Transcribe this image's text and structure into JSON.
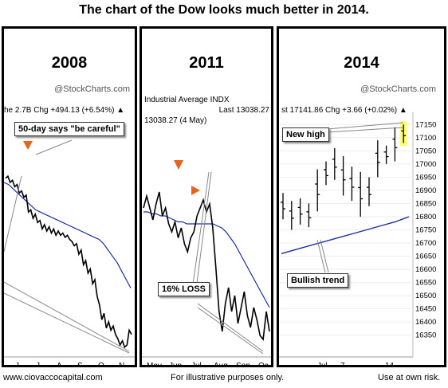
{
  "title": "The chart of the Dow looks much better in 2014.",
  "footer": {
    "left": "www.ciovaccocapital.com",
    "center": "For illustrative purposes only.",
    "right": "Use at own risk."
  },
  "chart_data": [
    {
      "type": "line",
      "year": "2008",
      "watermark": "@StockCharts.com",
      "header": "he 2.7B  Chg +494.13 (+6.54%) ▲",
      "x_ticks": [
        "J",
        "J",
        "A",
        "S",
        "O",
        "N"
      ],
      "annotation": "50-day says \"be careful\"",
      "series": [
        {
          "values": [
            0.82,
            0.83,
            0.8,
            0.81,
            0.78,
            0.79,
            0.75,
            0.76,
            0.73,
            0.74,
            0.66,
            0.67,
            0.63,
            0.65,
            0.61,
            0.62,
            0.58,
            0.6,
            0.57,
            0.59,
            0.56,
            0.58,
            0.55,
            0.57,
            0.55,
            0.56,
            0.54,
            0.55,
            0.53,
            0.52,
            0.5,
            0.51,
            0.46,
            0.48,
            0.41,
            0.43,
            0.37,
            0.39,
            0.32,
            0.34,
            0.26,
            0.22,
            0.15,
            0.18,
            0.11,
            0.14,
            0.1,
            0.12,
            0.08,
            0.06,
            0.03,
            0.05,
            0.02,
            0.03,
            0.1,
            0.08
          ]
        },
        {
          "values": [
            0.8,
            0.79,
            0.77,
            0.75,
            0.73,
            0.71,
            0.69,
            0.67,
            0.66,
            0.65,
            0.64,
            0.63,
            0.62,
            0.61,
            0.6,
            0.59,
            0.58,
            0.57,
            0.56,
            0.55,
            0.54,
            0.53,
            0.51,
            0.48,
            0.45,
            0.42,
            0.38,
            0.34,
            0.3
          ]
        }
      ]
    },
    {
      "type": "line",
      "year": "2011",
      "header_line1": "Industrial Average INDX",
      "header_line2": "Last 13038.27",
      "header_line3": "13038.27 (4 May)",
      "x_ticks": [
        "May",
        "Jun",
        "Jul",
        "Aug",
        "Sep",
        "Oc"
      ],
      "annotation": "16% LOSS",
      "series": [
        {
          "values": [
            0.7,
            0.76,
            0.7,
            0.64,
            0.72,
            0.78,
            0.66,
            0.7,
            0.62,
            0.58,
            0.63,
            0.55,
            0.6,
            0.52,
            0.48,
            0.55,
            0.58,
            0.66,
            0.7,
            0.74,
            0.68,
            0.72,
            0.6,
            0.4,
            0.18,
            0.08,
            0.22,
            0.3,
            0.18,
            0.26,
            0.12,
            0.2,
            0.28,
            0.16,
            0.1,
            0.2,
            0.14,
            0.06,
            0.04,
            0.18,
            0.08
          ]
        },
        {
          "values": [
            0.68,
            0.68,
            0.67,
            0.67,
            0.66,
            0.66,
            0.65,
            0.64,
            0.63,
            0.63,
            0.62,
            0.62,
            0.62,
            0.62,
            0.62,
            0.62,
            0.62,
            0.61,
            0.6,
            0.58,
            0.55,
            0.52,
            0.48,
            0.44,
            0.4,
            0.36,
            0.32,
            0.28,
            0.24,
            0.2
          ]
        }
      ]
    },
    {
      "type": "ohlc",
      "year": "2014",
      "watermark": "@StockCharts.com",
      "header": "st 17141.86  Chg +3.66 (+0.02%) ▲",
      "x_ticks": [
        "Jul",
        "7",
        "14"
      ],
      "y_ticks": [
        17150,
        17100,
        17050,
        17000,
        16950,
        16900,
        16850,
        16800,
        16750,
        16700,
        16650,
        16600,
        16550,
        16500,
        16450,
        16400,
        16350
      ],
      "ylim": [
        16325,
        17175
      ],
      "annotation_high": "New high",
      "annotation_trend": "Bullish trend",
      "bars": [
        {
          "high": 16890,
          "low": 16790
        },
        {
          "high": 16860,
          "low": 16750
        },
        {
          "high": 16870,
          "low": 16770
        },
        {
          "high": 16850,
          "low": 16760
        },
        {
          "high": 16980,
          "low": 16820
        },
        {
          "high": 17010,
          "low": 16920
        },
        {
          "high": 17060,
          "low": 16940
        },
        {
          "high": 17030,
          "low": 16880
        },
        {
          "high": 16990,
          "low": 16860
        },
        {
          "high": 16970,
          "low": 16800
        },
        {
          "high": 16950,
          "low": 16840
        },
        {
          "high": 17090,
          "low": 16950
        },
        {
          "high": 17070,
          "low": 17000
        },
        {
          "high": 17140,
          "low": 17010
        },
        {
          "high": 17150,
          "low": 17080
        }
      ],
      "moving_average": [
        16660,
        16675,
        16690,
        16705,
        16720,
        16735,
        16750,
        16765,
        16780,
        16800
      ]
    }
  ]
}
